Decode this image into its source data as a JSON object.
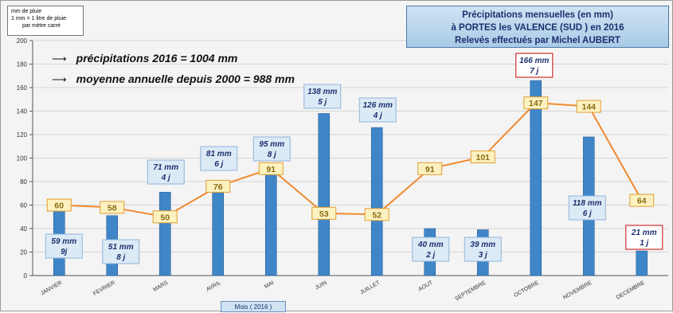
{
  "legend_note": {
    "line1": "mm de pluie",
    "line2": "1 mm = 1 litre de pluie",
    "line3": "par mètre carré"
  },
  "title_box": {
    "line1": "Précipitations mensuelles (en mm)",
    "line2": "à PORTES les VALENCE (SUD ) en 2016",
    "line3": "Relevés effectués par Michel AUBERT"
  },
  "summary": {
    "line1": "précipitations 2016 = 1004 mm",
    "line2": "moyenne annuelle depuis 2000 = 988 mm"
  },
  "colors": {
    "bar": "#3f86c8",
    "line": "#f08a30",
    "avg_box_fill": "#fdf1c0",
    "avg_box_border": "#e0a030",
    "label_box_fill": "#dceaf6",
    "label_box_border": "#8fb4d8",
    "highlight_border": "#d03030"
  },
  "chart_data": {
    "type": "bar",
    "categories": [
      "JANVIER",
      "FEVRIER",
      "MARS",
      "AVRIL",
      "MAI",
      "JUIN",
      "JUILLET",
      "AOUT",
      "SEPTEMBRE",
      "OCTOBRE",
      "NOVEMBRE",
      "DECEMBRE"
    ],
    "series": [
      {
        "values": [
          59,
          51,
          71,
          81,
          95,
          138,
          126,
          40,
          39,
          166,
          118,
          21
        ]
      },
      {
        "type": "line",
        "values": [
          60,
          58,
          50,
          76,
          91,
          53,
          52,
          91,
          101,
          147,
          144,
          64
        ]
      }
    ],
    "bar_labels": [
      {
        "mm": "59 mm",
        "days": "9j"
      },
      {
        "mm": "51 mm",
        "days": "8 j"
      },
      {
        "mm": "71 mm",
        "days": "4 j"
      },
      {
        "mm": "81 mm",
        "days": "6 j"
      },
      {
        "mm": "95 mm",
        "days": "8 j"
      },
      {
        "mm": "138 mm",
        "days": "5 j"
      },
      {
        "mm": "126 mm",
        "days": "4 j"
      },
      {
        "mm": "40 mm",
        "days": "2 j"
      },
      {
        "mm": "39 mm",
        "days": "3 j"
      },
      {
        "mm": "166 mm",
        "days": "7 j"
      },
      {
        "mm": "118 mm",
        "days": "6 j"
      },
      {
        "mm": "21 mm",
        "days": "1 j"
      }
    ],
    "highlighted_labels": [
      "OCTOBRE",
      "DECEMBRE"
    ],
    "yticks": [
      0,
      20,
      40,
      60,
      80,
      100,
      120,
      140,
      160,
      180,
      200
    ],
    "ylim": [
      0,
      200
    ],
    "grid": true,
    "xlabel": "Mois ( 2016 )"
  }
}
